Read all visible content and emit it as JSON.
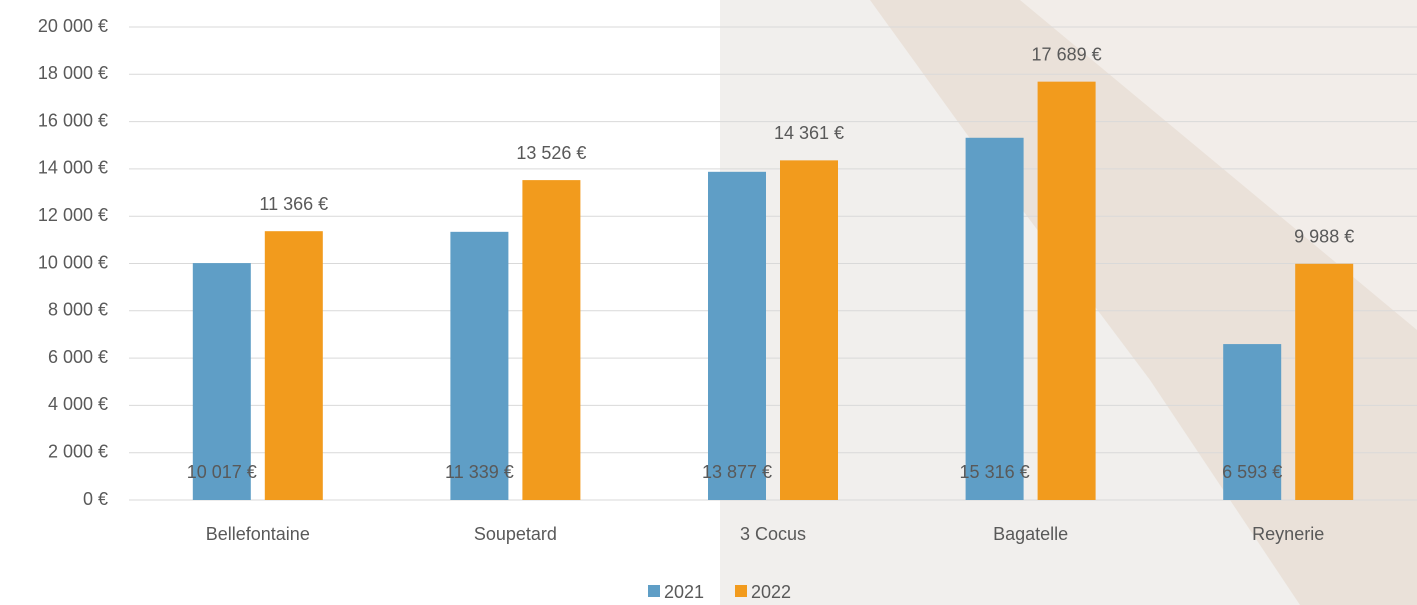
{
  "chart_data": {
    "type": "bar",
    "categories": [
      "Bellefontaine",
      "Soupetard",
      "3 Cocus",
      "Bagatelle",
      "Reynerie"
    ],
    "series": [
      {
        "name": "2021",
        "color": "#5f9ec6",
        "values": [
          10017,
          11339,
          13877,
          15316,
          6593
        ],
        "value_labels": [
          "10 017 €",
          "11 339 €",
          "13 877 €",
          "15 316 €",
          "6 593 €"
        ]
      },
      {
        "name": "2022",
        "color": "#f29b1d",
        "values": [
          11366,
          13526,
          14361,
          17689,
          9988
        ],
        "value_labels": [
          "11 366 €",
          "13 526 €",
          "14 361 €",
          "17 689 €",
          "9 988 €"
        ]
      }
    ],
    "ylim": [
      0,
      20000
    ],
    "yticks": [
      {
        "value": 0,
        "label": "0 €"
      },
      {
        "value": 2000,
        "label": "2 000 €"
      },
      {
        "value": 4000,
        "label": "4 000 €"
      },
      {
        "value": 6000,
        "label": "6 000 €"
      },
      {
        "value": 8000,
        "label": "8 000 €"
      },
      {
        "value": 10000,
        "label": "10 000 €"
      },
      {
        "value": 12000,
        "label": "12 000 €"
      },
      {
        "value": 14000,
        "label": "14 000 €"
      },
      {
        "value": 16000,
        "label": "16 000 €"
      },
      {
        "value": 18000,
        "label": "18 000 €"
      },
      {
        "value": 20000,
        "label": "20 000 €"
      }
    ],
    "grid": true
  }
}
